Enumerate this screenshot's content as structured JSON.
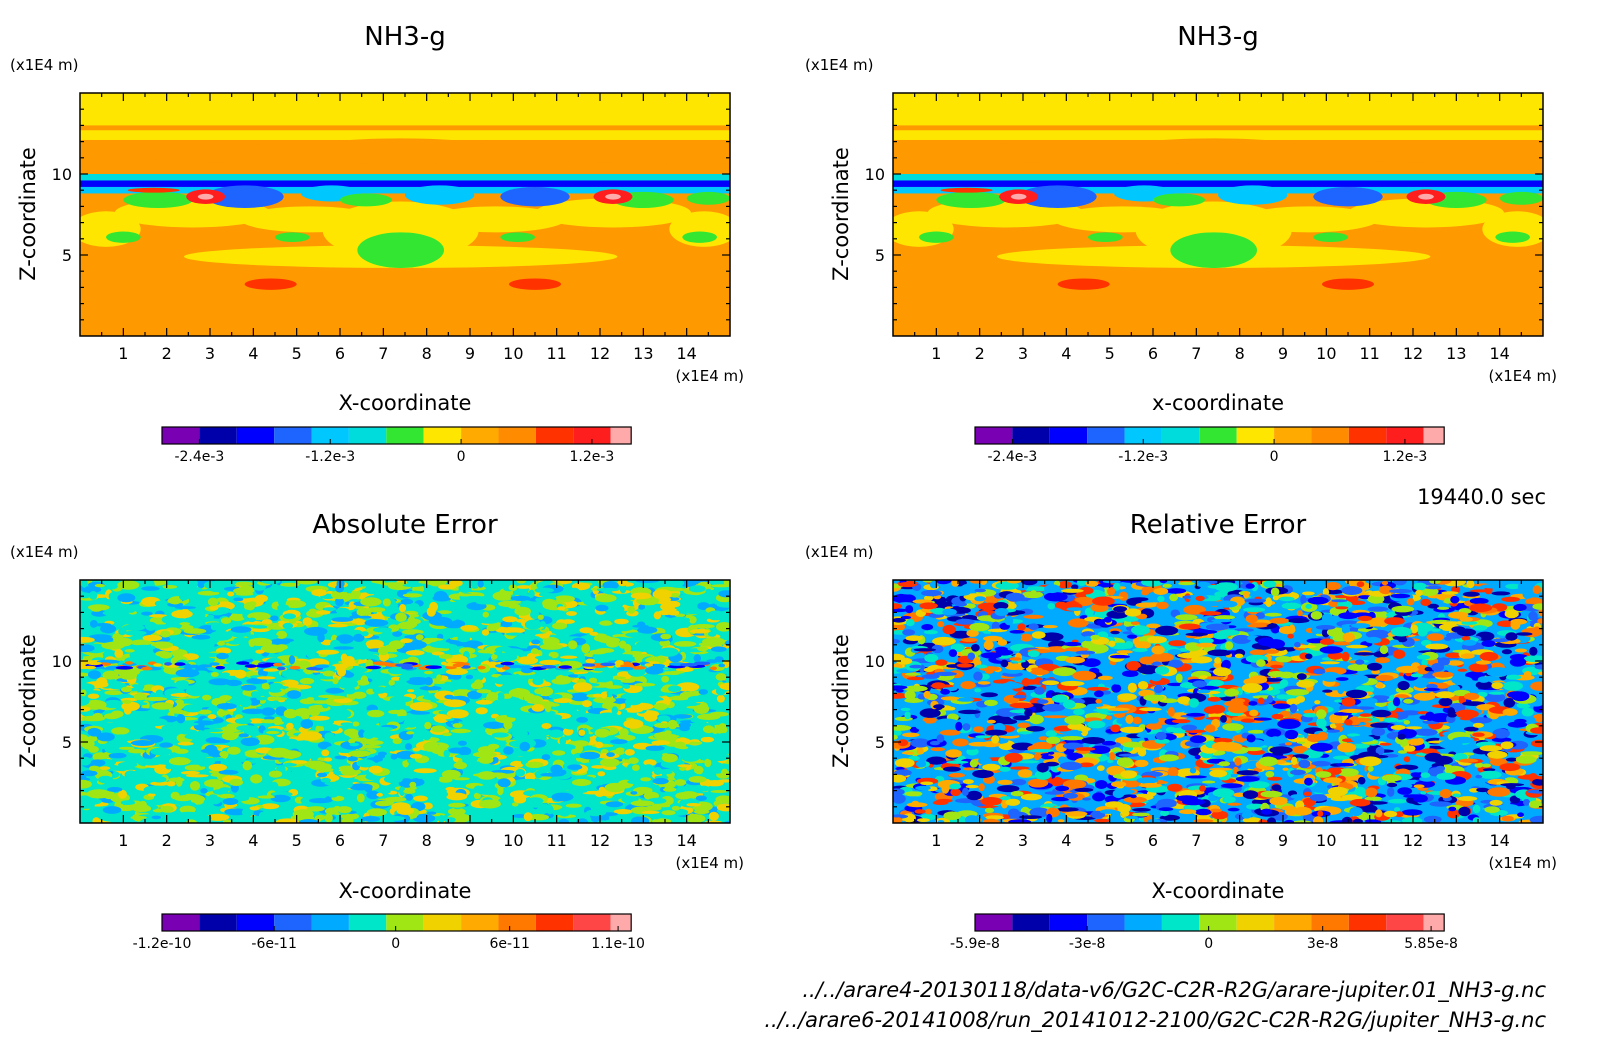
{
  "chart_data": [
    {
      "type": "heatmap",
      "title": "NH3-g",
      "xlabel": "X-coordinate",
      "ylabel": "Z-coordinate",
      "x_unit": "(x1E4 m)",
      "y_unit": "(x1E4 m)",
      "xlim": [
        0,
        15
      ],
      "ylim": [
        0,
        15
      ],
      "x_ticks": [
        "1",
        "2",
        "3",
        "4",
        "5",
        "6",
        "7",
        "8",
        "9",
        "10",
        "11",
        "12",
        "13",
        "14"
      ],
      "y_ticks": [
        "5",
        "10"
      ],
      "pattern": "field",
      "colorbar": {
        "colors": [
          "#7a00b4",
          "#0000aa",
          "#0000ff",
          "#1e64ff",
          "#00c8ff",
          "#00dcdc",
          "#32e632",
          "#ffe600",
          "#ffaa00",
          "#ff8c00",
          "#ff3200",
          "#ff1e1e",
          "#ffaaaa"
        ],
        "tick_labels": [
          "-2.4e-3",
          "-1.2e-3",
          "0",
          "1.2e-3"
        ]
      }
    },
    {
      "type": "heatmap",
      "title": "NH3-g",
      "xlabel": "x-coordinate",
      "ylabel": "Z-coordinate",
      "x_unit": "(x1E4 m)",
      "y_unit": "(x1E4 m)",
      "xlim": [
        0,
        15
      ],
      "ylim": [
        0,
        15
      ],
      "x_ticks": [
        "1",
        "2",
        "3",
        "4",
        "5",
        "6",
        "7",
        "8",
        "9",
        "10",
        "11",
        "12",
        "13",
        "14"
      ],
      "y_ticks": [
        "5",
        "10"
      ],
      "pattern": "field",
      "colorbar": {
        "colors": [
          "#7a00b4",
          "#0000aa",
          "#0000ff",
          "#1e64ff",
          "#00c8ff",
          "#00dcdc",
          "#32e632",
          "#ffe600",
          "#ffaa00",
          "#ff8c00",
          "#ff3200",
          "#ff1e1e",
          "#ffaaaa"
        ],
        "tick_labels": [
          "-2.4e-3",
          "-1.2e-3",
          "0",
          "1.2e-3"
        ]
      }
    },
    {
      "type": "heatmap",
      "title": "Absolute Error",
      "xlabel": "X-coordinate",
      "ylabel": "Z-coordinate",
      "x_unit": "(x1E4 m)",
      "y_unit": "(x1E4 m)",
      "xlim": [
        0,
        15
      ],
      "ylim": [
        0,
        15
      ],
      "x_ticks": [
        "1",
        "2",
        "3",
        "4",
        "5",
        "6",
        "7",
        "8",
        "9",
        "10",
        "11",
        "12",
        "13",
        "14"
      ],
      "y_ticks": [
        "5",
        "10"
      ],
      "pattern": "noise-low",
      "colorbar": {
        "colors": [
          "#7a00b4",
          "#0000aa",
          "#0000ff",
          "#1e64ff",
          "#00aaff",
          "#00e6c8",
          "#a0e614",
          "#f0d200",
          "#ffaa00",
          "#ff7800",
          "#ff3200",
          "#ff4646",
          "#ffaaaa"
        ],
        "tick_labels": [
          "-1.2e-10",
          "-6e-11",
          "0",
          "6e-11",
          "1.1e-10"
        ]
      }
    },
    {
      "type": "heatmap",
      "title": "Relative Error",
      "xlabel": "X-coordinate",
      "ylabel": "Z-coordinate",
      "x_unit": "(x1E4 m)",
      "y_unit": "(x1E4 m)",
      "xlim": [
        0,
        15
      ],
      "ylim": [
        0,
        15
      ],
      "x_ticks": [
        "1",
        "2",
        "3",
        "4",
        "5",
        "6",
        "7",
        "8",
        "9",
        "10",
        "11",
        "12",
        "13",
        "14"
      ],
      "y_ticks": [
        "5",
        "10"
      ],
      "pattern": "noise-high",
      "colorbar": {
        "colors": [
          "#7a00b4",
          "#0000aa",
          "#0000ff",
          "#1e64ff",
          "#00aaff",
          "#00e6c8",
          "#a0e614",
          "#f0d200",
          "#ffaa00",
          "#ff7800",
          "#ff3200",
          "#ff4646",
          "#ffaaaa"
        ],
        "tick_labels": [
          "-5.9e-8",
          "-3e-8",
          "0",
          "3e-8",
          "5.85e-8"
        ]
      }
    }
  ],
  "time_label": "19440.0 sec",
  "file_paths": [
    "../../arare4-20130118/data-v6/G2C-C2R-R2G/arare-jupiter.01_NH3-g.nc",
    "../../arare6-20141008/run_20141012-2100/G2C-C2R-R2G/jupiter_NH3-g.nc"
  ]
}
